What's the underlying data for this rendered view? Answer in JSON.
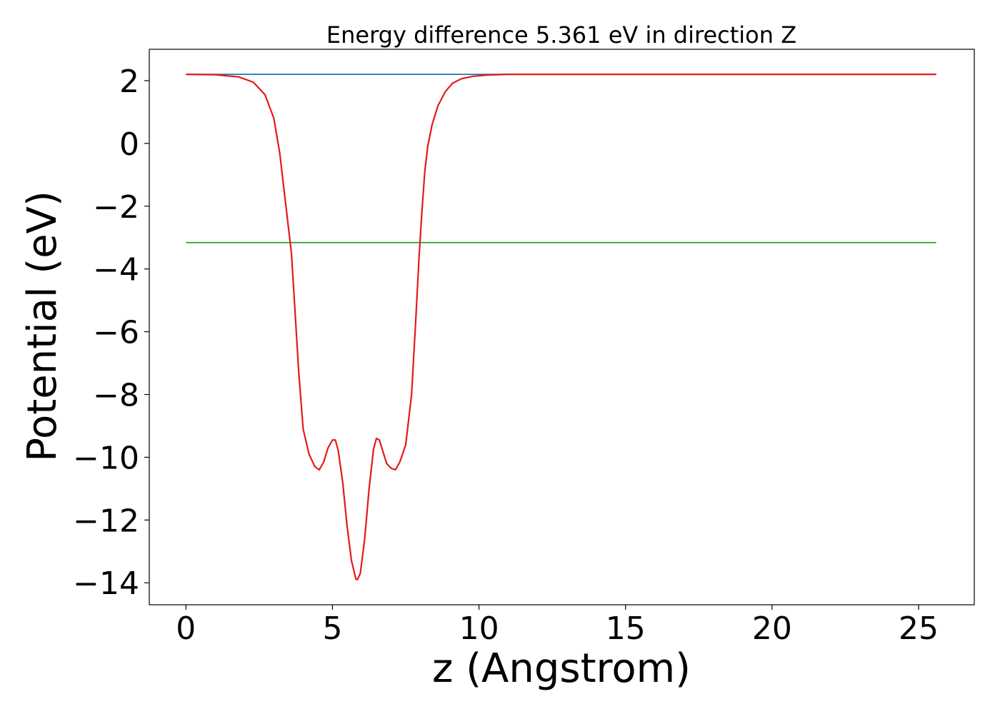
{
  "chart_data": {
    "type": "line",
    "title": "Energy difference 5.361 eV in direction Z",
    "xlabel": "z (Angstrom)",
    "ylabel": "Potential (eV)",
    "xlim": [
      -1.25,
      26.9
    ],
    "ylim": [
      -14.7,
      3.0
    ],
    "x_ticks": [
      0,
      5,
      10,
      15,
      20,
      25
    ],
    "y_ticks": [
      2,
      0,
      -2,
      -4,
      -6,
      -8,
      -10,
      -12,
      -14
    ],
    "x_tick_labels": [
      "0",
      "5",
      "10",
      "15",
      "20",
      "25"
    ],
    "y_tick_labels": [
      "2",
      "0",
      "−2",
      "−4",
      "−6",
      "−8",
      "−10",
      "−12",
      "−14"
    ],
    "grid": false,
    "series": [
      {
        "color": "#1f77b4",
        "x": [
          0,
          25.6
        ],
        "y": [
          2.2,
          2.2
        ]
      },
      {
        "color": "#2ca02c",
        "x": [
          0,
          25.6
        ],
        "y": [
          -3.16,
          -3.16
        ]
      },
      {
        "color": "#7070aa",
        "x": [
          10.5,
          25.6
        ],
        "y": [
          2.2,
          2.2
        ]
      },
      {
        "color": "#e31a1c",
        "x": [
          0,
          1.0,
          1.8,
          2.3,
          2.7,
          3.0,
          3.2,
          3.35,
          3.5,
          3.6,
          3.7,
          3.85,
          4.0,
          4.2,
          4.4,
          4.55,
          4.7,
          4.85,
          5.0,
          5.1,
          5.2,
          5.35,
          5.5,
          5.65,
          5.8,
          5.85,
          5.95,
          6.1,
          6.25,
          6.4,
          6.5,
          6.6,
          6.7,
          6.85,
          7.0,
          7.15,
          7.3,
          7.5,
          7.7,
          7.85,
          7.95,
          8.05,
          8.15,
          8.25,
          8.4,
          8.6,
          8.85,
          9.1,
          9.4,
          9.8,
          10.3,
          11.0,
          12.0,
          14.0,
          17.0,
          20.0,
          23.0,
          25.6
        ],
        "y": [
          2.2,
          2.19,
          2.12,
          1.95,
          1.55,
          0.8,
          -0.3,
          -1.5,
          -2.7,
          -3.5,
          -5.0,
          -7.3,
          -9.1,
          -9.9,
          -10.3,
          -10.4,
          -10.15,
          -9.7,
          -9.45,
          -9.45,
          -9.8,
          -10.8,
          -12.2,
          -13.3,
          -13.88,
          -13.9,
          -13.7,
          -12.6,
          -11.0,
          -9.75,
          -9.4,
          -9.45,
          -9.75,
          -10.2,
          -10.35,
          -10.4,
          -10.15,
          -9.6,
          -8.0,
          -5.5,
          -3.7,
          -2.2,
          -0.9,
          -0.1,
          0.6,
          1.2,
          1.65,
          1.92,
          2.06,
          2.14,
          2.18,
          2.2,
          2.2,
          2.2,
          2.2,
          2.2,
          2.2,
          2.2
        ]
      }
    ]
  }
}
